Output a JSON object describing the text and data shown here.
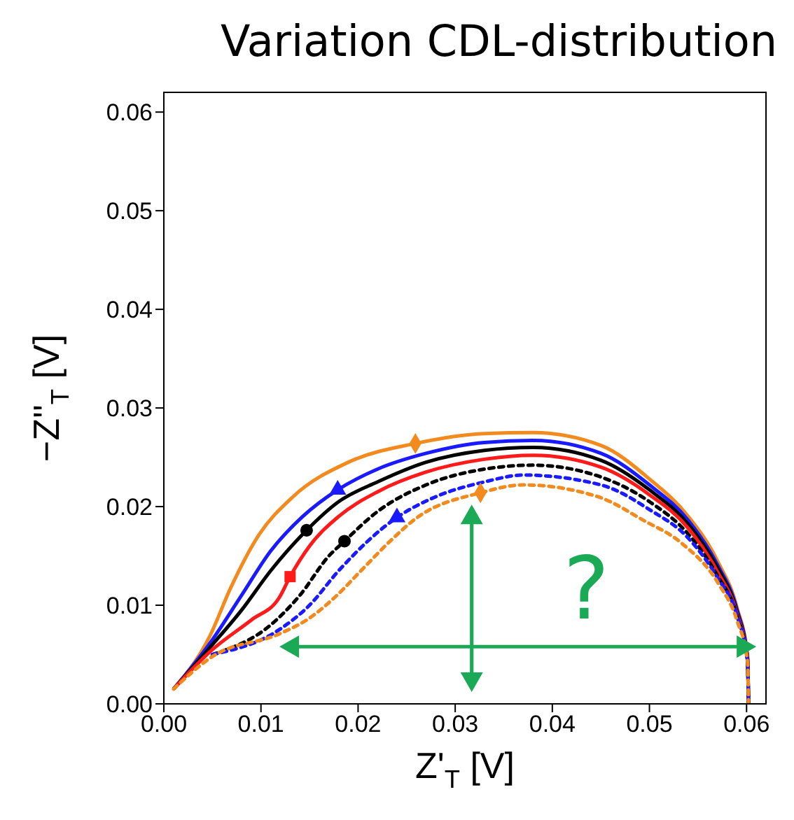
{
  "chart_data": {
    "type": "line",
    "title": "Variation CDL-distribution",
    "xlabel": "Z'$_{T}$ [V]",
    "ylabel": "−Z''$_{T}$ [V]",
    "xlim": [
      0,
      0.062
    ],
    "ylim": [
      0,
      0.062
    ],
    "xticks": [
      {
        "value": 0,
        "label": "0.00"
      },
      {
        "value": 0.01,
        "label": "0.01"
      },
      {
        "value": 0.02,
        "label": "0.02"
      },
      {
        "value": 0.03,
        "label": "0.03"
      },
      {
        "value": 0.04,
        "label": "0.04"
      },
      {
        "value": 0.05,
        "label": "0.05"
      },
      {
        "value": 0.06,
        "label": "0.06"
      }
    ],
    "yticks": [
      {
        "value": 0,
        "label": "0.00"
      },
      {
        "value": 0.01,
        "label": "0.01"
      },
      {
        "value": 0.02,
        "label": "0.02"
      },
      {
        "value": 0.03,
        "label": "0.03"
      },
      {
        "value": 0.04,
        "label": "0.04"
      },
      {
        "value": 0.05,
        "label": "0.05"
      },
      {
        "value": 0.06,
        "label": "0.06"
      }
    ],
    "annotations": [
      "?"
    ],
    "series": [
      {
        "color": "#f28a1e",
        "line_style": "solid",
        "x": [
          0.001,
          0.0047,
          0.0069,
          0.0097,
          0.0133,
          0.019,
          0.0259,
          0.033,
          0.038,
          0.045,
          0.05,
          0.054,
          0.057,
          0.059,
          0.0601,
          0.0602
        ],
        "values": [
          0.0015,
          0.0068,
          0.0118,
          0.017,
          0.021,
          0.0245,
          0.0264,
          0.0274,
          0.0275,
          0.0262,
          0.0228,
          0.019,
          0.0145,
          0.0098,
          0.0048,
          0
        ]
      },
      {
        "color": "#1a1aff",
        "line_style": "solid",
        "x": [
          0.001,
          0.005,
          0.008,
          0.011,
          0.0143,
          0.0179,
          0.022,
          0.027,
          0.033,
          0.038,
          0.045,
          0.05,
          0.054,
          0.057,
          0.059,
          0.0601,
          0.0602
        ],
        "values": [
          0.0015,
          0.0065,
          0.011,
          0.0155,
          0.019,
          0.0217,
          0.0238,
          0.0254,
          0.0265,
          0.0267,
          0.0254,
          0.0222,
          0.0186,
          0.0141,
          0.0096,
          0.0047,
          0
        ]
      },
      {
        "color": "#000000",
        "line_style": "solid",
        "x": [
          0.001,
          0.005,
          0.008,
          0.011,
          0.0147,
          0.018,
          0.022,
          0.027,
          0.033,
          0.038,
          0.045,
          0.05,
          0.054,
          0.057,
          0.059,
          0.0601,
          0.0602
        ],
        "values": [
          0.0015,
          0.006,
          0.0095,
          0.0135,
          0.0176,
          0.0205,
          0.0225,
          0.0245,
          0.0257,
          0.026,
          0.0247,
          0.0217,
          0.0182,
          0.0138,
          0.0094,
          0.0046,
          0
        ]
      },
      {
        "color": "#ff1a1a",
        "line_style": "solid",
        "x": [
          0.001,
          0.005,
          0.009,
          0.0119,
          0.013,
          0.015,
          0.018,
          0.022,
          0.027,
          0.033,
          0.038,
          0.045,
          0.05,
          0.054,
          0.057,
          0.059,
          0.0601,
          0.0602
        ],
        "values": [
          0.0015,
          0.0055,
          0.0085,
          0.0108,
          0.0129,
          0.016,
          0.019,
          0.0215,
          0.0235,
          0.0248,
          0.0252,
          0.024,
          0.0212,
          0.0178,
          0.0134,
          0.0092,
          0.0045,
          0
        ]
      },
      {
        "color": "#000000",
        "line_style": "dashed",
        "x": [
          0.005,
          0.011,
          0.014,
          0.017,
          0.0186,
          0.022,
          0.027,
          0.033,
          0.038,
          0.045,
          0.05,
          0.054,
          0.057,
          0.059,
          0.0601,
          0.0602
        ],
        "values": [
          0.005,
          0.008,
          0.011,
          0.015,
          0.0165,
          0.0195,
          0.0222,
          0.0238,
          0.0242,
          0.023,
          0.0205,
          0.0172,
          0.013,
          0.009,
          0.0043,
          0
        ]
      },
      {
        "color": "#1a1aff",
        "line_style": "dashed",
        "x": [
          0.005,
          0.012,
          0.015,
          0.018,
          0.024,
          0.028,
          0.033,
          0.037,
          0.045,
          0.05,
          0.054,
          0.057,
          0.059,
          0.0601,
          0.0602
        ],
        "values": [
          0.005,
          0.0076,
          0.01,
          0.0135,
          0.0189,
          0.021,
          0.0225,
          0.0232,
          0.0222,
          0.0197,
          0.0168,
          0.0128,
          0.009,
          0.0043,
          0
        ]
      },
      {
        "color": "#f28a1e",
        "line_style": "dashed",
        "x": [
          0.001,
          0.005,
          0.0119,
          0.0147,
          0.0176,
          0.0204,
          0.0233,
          0.0261,
          0.0326,
          0.037,
          0.0447,
          0.0494,
          0.0533,
          0.0571,
          0.059,
          0.0601,
          0.0602
        ],
        "values": [
          0.0015,
          0.0048,
          0.0071,
          0.0085,
          0.0108,
          0.0136,
          0.0165,
          0.0189,
          0.0214,
          0.0222,
          0.021,
          0.0186,
          0.0163,
          0.0122,
          0.0085,
          0.0043,
          0
        ]
      },
      {
        "type": "scatter",
        "marker": "diamond",
        "color": "#f28a1e",
        "x": [
          0.0259,
          0.0326
        ],
        "values": [
          0.0264,
          0.0214
        ]
      },
      {
        "type": "scatter",
        "marker": "triangle",
        "color": "#1a1aff",
        "x": [
          0.0179,
          0.024
        ],
        "values": [
          0.0217,
          0.0189
        ]
      },
      {
        "type": "scatter",
        "marker": "circle",
        "color": "#000000",
        "x": [
          0.0147,
          0.0186
        ],
        "values": [
          0.0176,
          0.0165
        ]
      },
      {
        "type": "scatter",
        "marker": "square",
        "color": "#ff1a1a",
        "x": [
          0.013
        ],
        "values": [
          0.0129
        ]
      }
    ]
  }
}
